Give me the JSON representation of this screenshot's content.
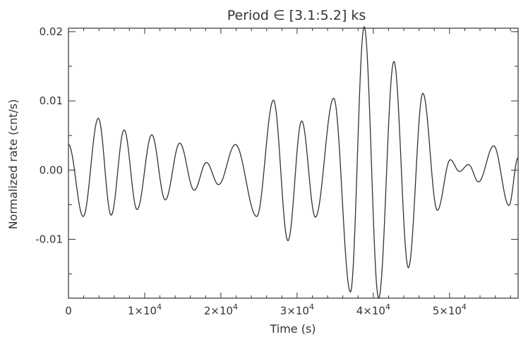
{
  "chart_data": {
    "type": "line",
    "title": "Period ∈ [3.1:5.2] ks",
    "xlabel": "Time (s)",
    "ylabel": "Normalized rate (cnt/s)",
    "xlim": [
      0,
      59000
    ],
    "ylim": [
      -0.0185,
      0.0205
    ],
    "xticks": [
      {
        "value": 0,
        "label": "0",
        "exp": ""
      },
      {
        "value": 10000,
        "label": "1×10",
        "exp": "4"
      },
      {
        "value": 20000,
        "label": "2×10",
        "exp": "4"
      },
      {
        "value": 30000,
        "label": "3×10",
        "exp": "4"
      },
      {
        "value": 40000,
        "label": "4×10",
        "exp": "4"
      },
      {
        "value": 50000,
        "label": "5×10",
        "exp": "4"
      }
    ],
    "yticks": [
      {
        "value": -0.01,
        "label": "-0.01"
      },
      {
        "value": 0.0,
        "label": "0.00"
      },
      {
        "value": 0.01,
        "label": "0.01"
      },
      {
        "value": 0.02,
        "label": "0.02"
      }
    ],
    "grid": false,
    "line_color": "#333333",
    "series": [
      {
        "extrema": [
          [
            0,
            0.0037
          ],
          [
            1930,
            -0.0067
          ],
          [
            3920,
            0.0075
          ],
          [
            5600,
            -0.0065
          ],
          [
            7300,
            0.0058
          ],
          [
            9000,
            -0.0057
          ],
          [
            10930,
            0.0051
          ],
          [
            12700,
            -0.0043
          ],
          [
            14600,
            0.0039
          ],
          [
            16500,
            -0.0029
          ],
          [
            18100,
            0.0011
          ],
          [
            19700,
            -0.0021
          ],
          [
            21900,
            0.0037
          ],
          [
            24700,
            -0.0067
          ],
          [
            26900,
            0.0101
          ],
          [
            28800,
            -0.0102
          ],
          [
            30600,
            0.0071
          ],
          [
            32400,
            -0.0068
          ],
          [
            34800,
            0.0104
          ],
          [
            37000,
            -0.0176
          ],
          [
            38800,
            0.0207
          ],
          [
            40700,
            -0.0185
          ],
          [
            42700,
            0.0157
          ],
          [
            44600,
            -0.0141
          ],
          [
            46500,
            0.0111
          ],
          [
            48400,
            -0.0058
          ],
          [
            50100,
            0.0015
          ],
          [
            51300,
            -0.0002
          ],
          [
            52500,
            0.0008
          ],
          [
            53800,
            -0.0017
          ],
          [
            55800,
            0.0035
          ],
          [
            57800,
            -0.0051
          ],
          [
            59000,
            0.0018
          ]
        ]
      }
    ]
  }
}
